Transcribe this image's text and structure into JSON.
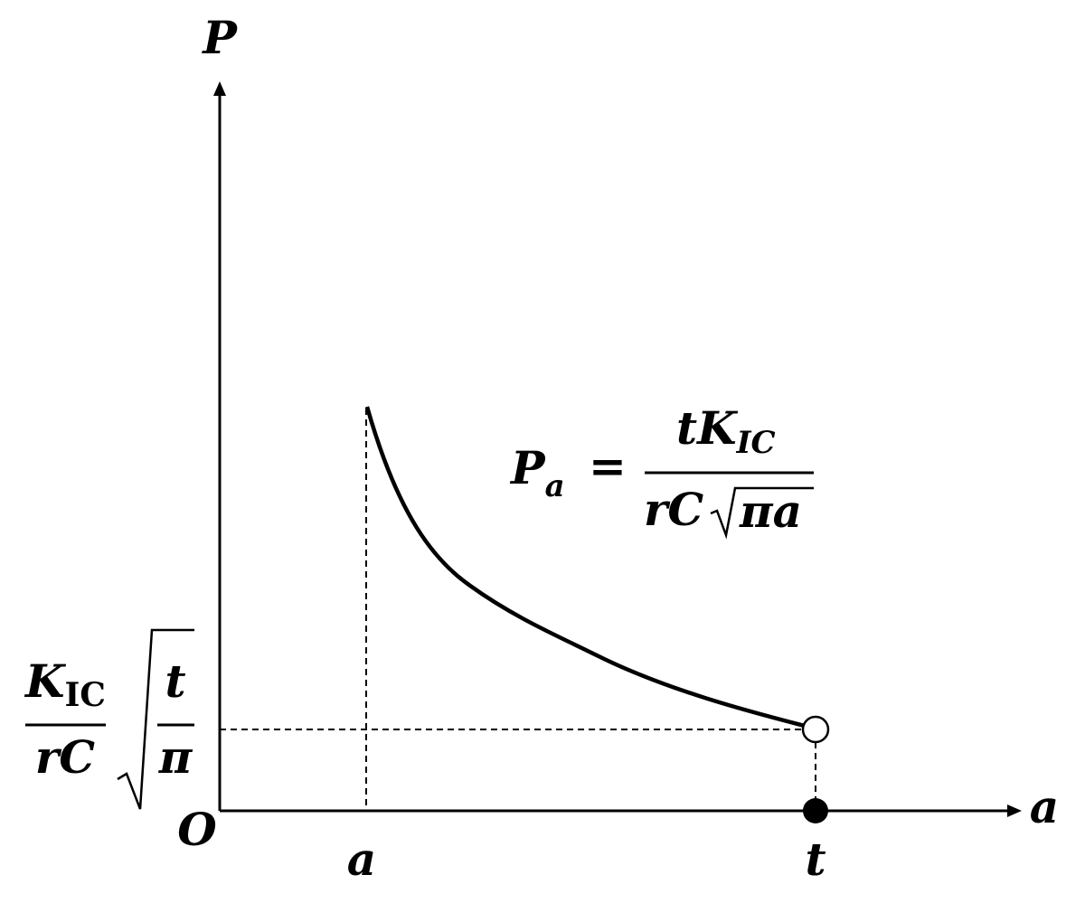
{
  "axes": {
    "y_label": "P",
    "x_label": "a",
    "origin": "O"
  },
  "x_marks": [
    "a",
    "t"
  ],
  "formula": {
    "lhs": "P",
    "lhs_sub": "a",
    "eq": "=",
    "num": "tK",
    "num_sub": "IC",
    "den": "rC",
    "den_root": "πa"
  },
  "y_mark": {
    "num": "K",
    "num_sub": "IC",
    "den": "rC",
    "root_num": "t",
    "root_den": "π"
  }
}
